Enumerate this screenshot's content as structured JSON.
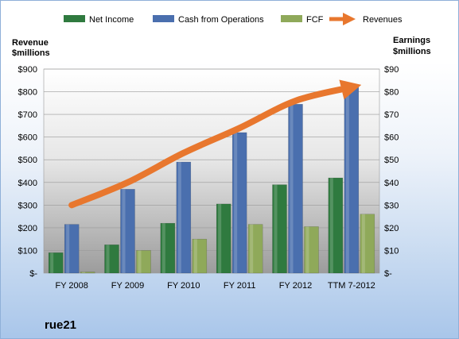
{
  "chart_data": {
    "type": "bar",
    "categories": [
      "FY 2008",
      "FY 2009",
      "FY 2010",
      "FY 2011",
      "FY 2012",
      "TTM 7-2012"
    ],
    "series": [
      {
        "name": "Net Income",
        "axis": "right",
        "color": "#2f7a3f",
        "values": [
          9,
          12.5,
          22,
          30.5,
          39,
          42
        ]
      },
      {
        "name": "Cash from Operations",
        "axis": "right",
        "color": "#4a6fae",
        "values": [
          21.5,
          37,
          49,
          62,
          74.5,
          82
        ]
      },
      {
        "name": "FCF",
        "axis": "right",
        "color": "#8fa95a",
        "values": [
          0.5,
          10,
          15,
          21.5,
          20.5,
          26
        ]
      },
      {
        "name": "Revenues",
        "axis": "left",
        "type": "line",
        "color": "#e8772e",
        "values": [
          300,
          400,
          530,
          640,
          760,
          820
        ]
      }
    ],
    "left_axis": {
      "title_line1": "Revenue",
      "title_line2": "$millions",
      "range": [
        0,
        900
      ],
      "tick_labels": [
        "$-",
        "$100",
        "$200",
        "$300",
        "$400",
        "$500",
        "$600",
        "$700",
        "$800",
        "$900"
      ]
    },
    "right_axis": {
      "title_line1": "Earnings",
      "title_line2": "$millions",
      "range": [
        0,
        90
      ],
      "tick_labels": [
        "$-",
        "$10",
        "$20",
        "$30",
        "$40",
        "$50",
        "$60",
        "$70",
        "$80",
        "$90"
      ]
    },
    "legend_position": "top",
    "grid": true,
    "company_label": "rue21"
  }
}
